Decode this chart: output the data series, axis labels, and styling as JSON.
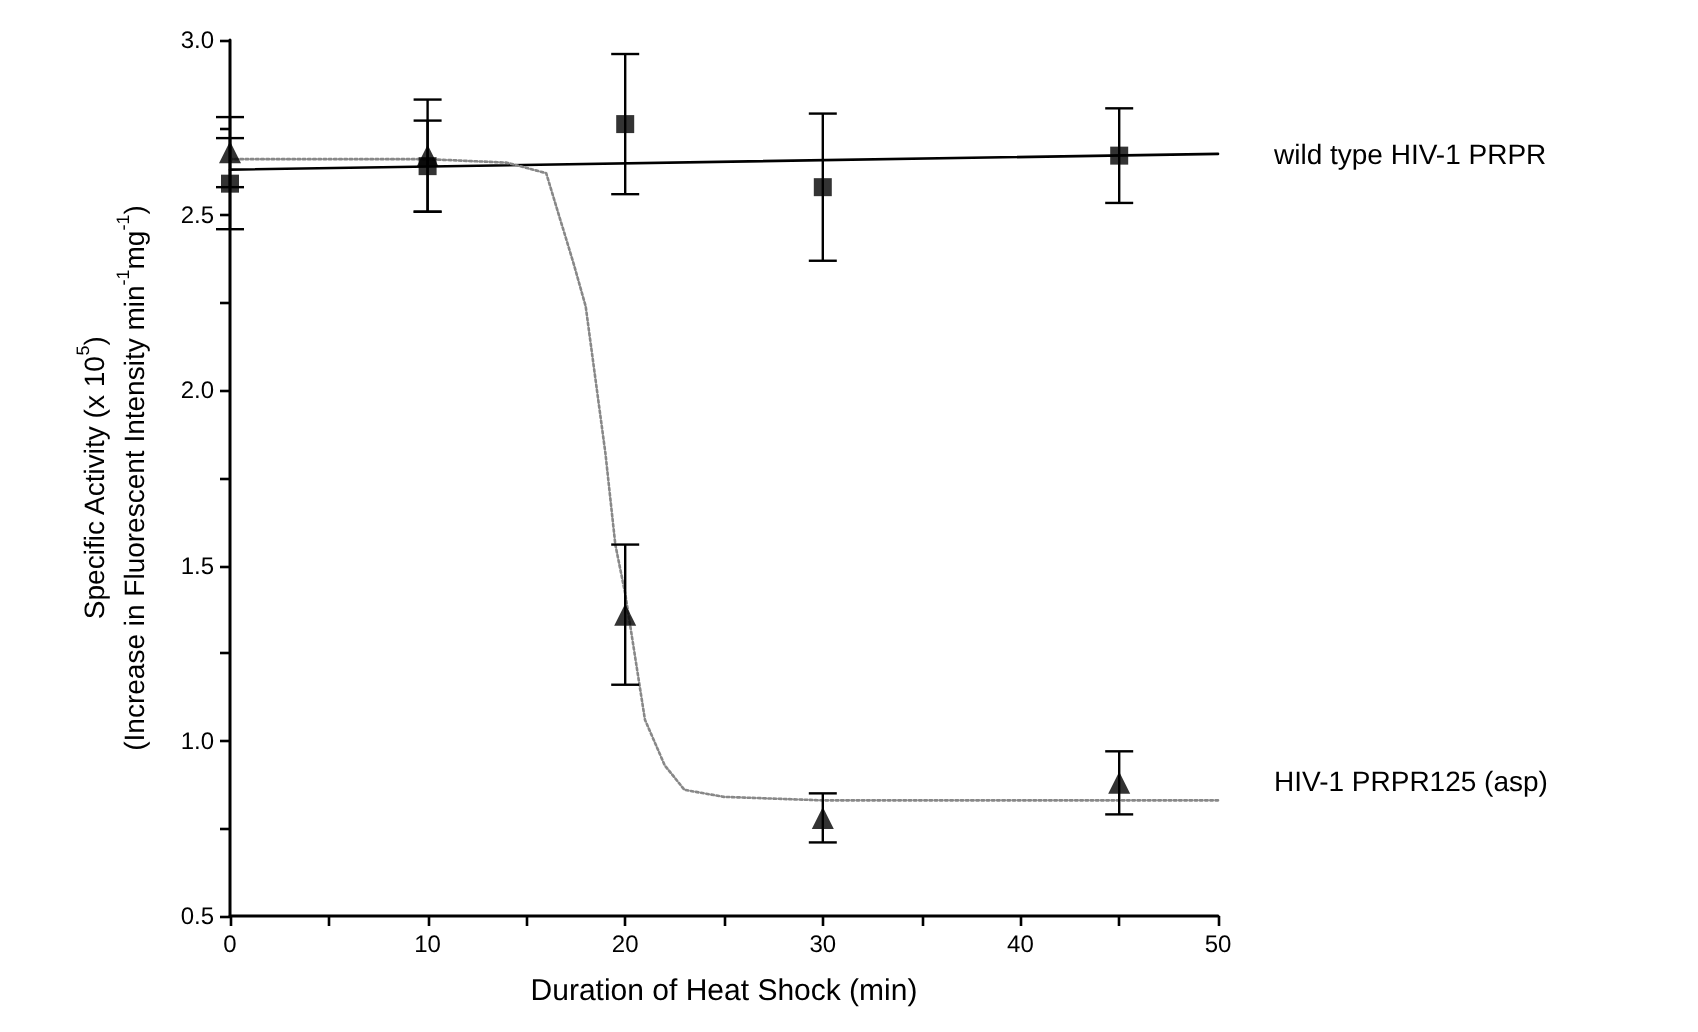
{
  "chart_data": {
    "type": "scatter",
    "xlabel": "Duration of Heat Shock (min)",
    "ylabel": "Specific Activity (x 10$^{5}$)\n(Increase in Fluorescent Intensity min$^{-1}$mg$^{-1}$)",
    "xlim": [
      0,
      50
    ],
    "xticks": [
      0,
      {
        "value": 5,
        "label": null
      },
      10,
      {
        "value": 15,
        "label": null
      },
      20,
      {
        "value": 25,
        "label": null
      },
      30,
      {
        "value": 35,
        "label": null
      },
      40,
      {
        "value": 45,
        "label": null
      },
      50
    ],
    "ylim": [
      0.5,
      3.0
    ],
    "yticks": [
      0.5,
      {
        "value": 0.75,
        "label": null
      },
      {
        "value": 1.0,
        "label": "1.0"
      },
      {
        "value": 1.25,
        "label": null
      },
      1.5,
      {
        "value": 1.75,
        "label": null
      },
      {
        "value": 2.0,
        "label": "2.0"
      },
      {
        "value": 2.25,
        "label": null
      },
      2.5,
      {
        "value": 2.75,
        "label": null
      },
      {
        "value": 3.0,
        "label": "3.0"
      }
    ],
    "grid": false,
    "legend": "right",
    "series": [
      {
        "name": "wild type HIV-1 PRPR",
        "marker": "square",
        "color": "#000000",
        "x": [
          0,
          10,
          20,
          30,
          45
        ],
        "values": [
          2.59,
          2.64,
          2.76,
          2.58,
          2.67
        ],
        "errors": [
          0.13,
          0.13,
          0.2,
          0.21,
          0.135
        ]
      },
      {
        "name": "HIV-1 PRPR125 (asp)",
        "marker": "triangle",
        "color": "#000000",
        "x": [
          0,
          10,
          20,
          30,
          45
        ],
        "values": [
          2.68,
          2.67,
          1.36,
          0.78,
          0.88
        ],
        "errors": [
          0.1,
          0.16,
          0.2,
          0.07,
          0.09
        ]
      },
      {
        "type": "line",
        "marker": "none",
        "line_style": "solid",
        "color": "#000000",
        "x": [
          0,
          50
        ],
        "values": [
          2.63,
          2.675
        ]
      },
      {
        "type": "line",
        "marker": "none",
        "line_style": "dotted",
        "color": "#888888",
        "x": [
          0,
          10,
          14,
          16,
          17.4,
          18,
          19,
          19.5,
          20,
          21,
          22,
          23,
          25,
          30,
          50
        ],
        "values": [
          2.66,
          2.66,
          2.65,
          2.62,
          2.36,
          2.24,
          1.82,
          1.56,
          1.42,
          1.06,
          0.93,
          0.86,
          0.84,
          0.83,
          0.83
        ]
      }
    ]
  }
}
